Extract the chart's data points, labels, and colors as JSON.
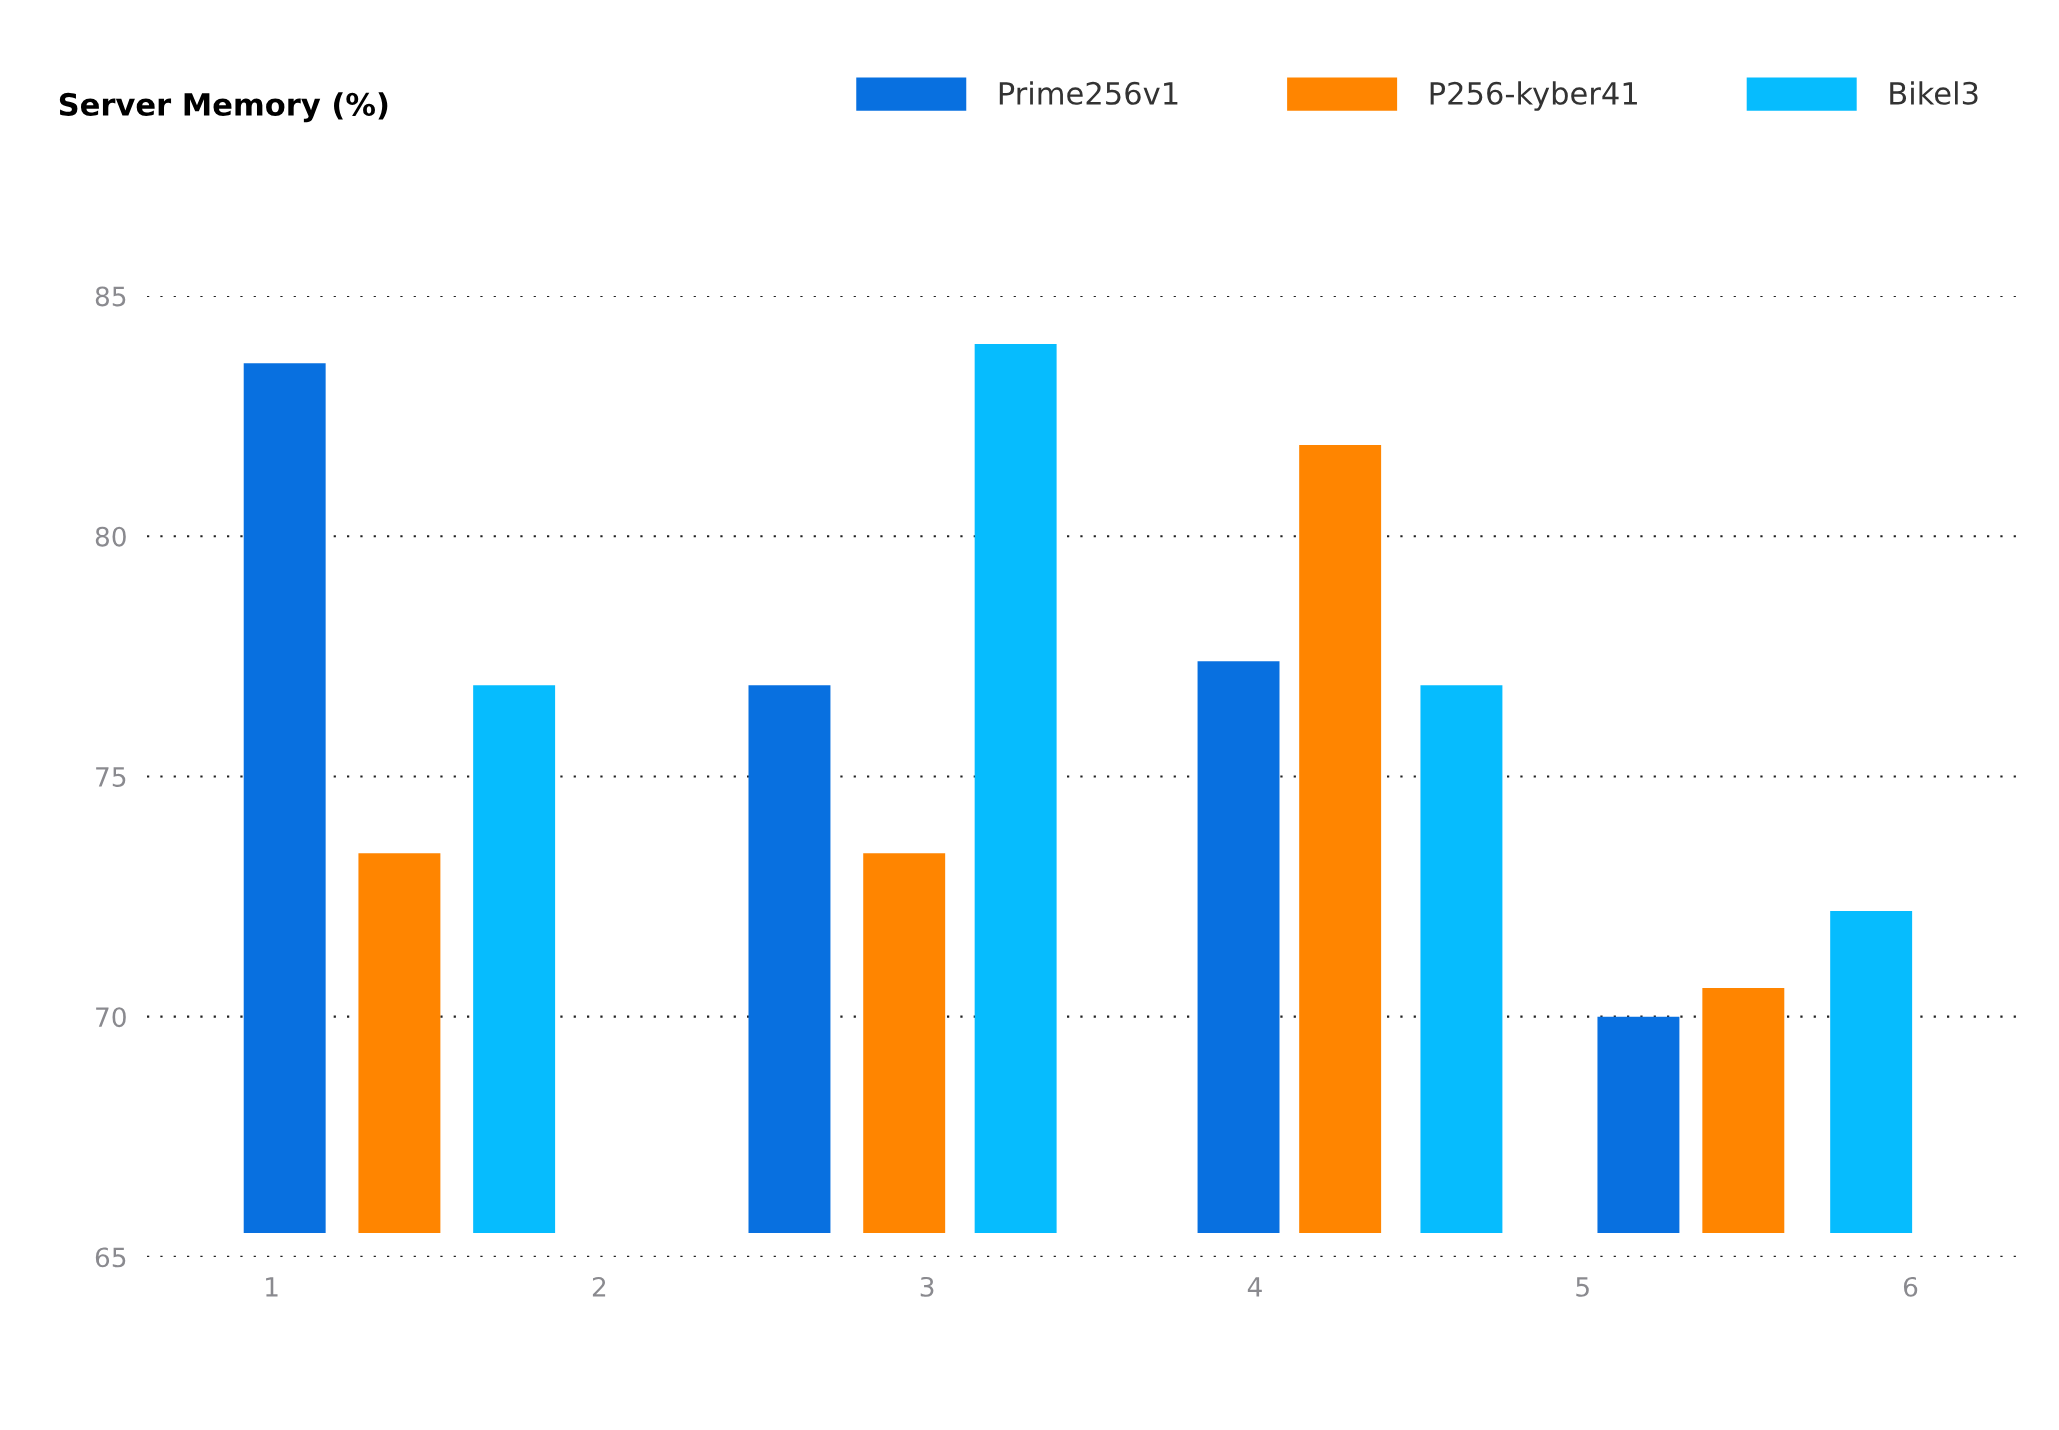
{
  "chart_data": {
    "type": "bar",
    "title": "Server Memory (%)",
    "series": [
      {
        "name": "Prime256v1",
        "color": "#0870e0",
        "x": [
          1.04,
          2.58,
          3.95,
          5.17
        ],
        "base": [
          65.5,
          65.5,
          65.5,
          65.5
        ],
        "values": [
          18.1,
          11.4,
          11.9,
          4.5
        ]
      },
      {
        "name": "P256-kyber41",
        "color": "#ff8500",
        "x": [
          1.39,
          2.93,
          4.26,
          5.49
        ],
        "base": [
          65.5,
          65.5,
          65.5,
          65.5
        ],
        "values": [
          7.9,
          7.9,
          16.4,
          5.1
        ]
      },
      {
        "name": "Bikel3",
        "color": "#06bcfe",
        "x": [
          1.74,
          3.27,
          4.63,
          5.88
        ],
        "base": [
          65.5,
          65.5,
          65.5,
          65.5
        ],
        "values": [
          11.4,
          18.5,
          11.4,
          6.7
        ]
      }
    ],
    "xlim": [
      0.62,
      6.34
    ],
    "xticks": [
      1,
      2,
      3,
      4,
      5,
      6
    ],
    "ylim": [
      65,
      85
    ],
    "yticks": [
      65,
      70,
      75,
      80,
      85
    ],
    "grid": "y",
    "legend": "top right"
  }
}
